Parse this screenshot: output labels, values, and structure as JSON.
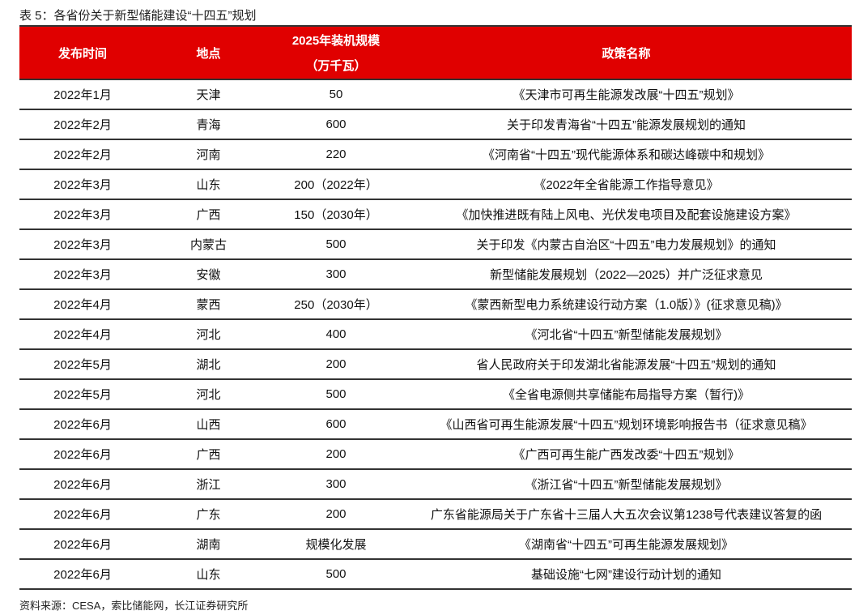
{
  "title": "表 5：各省份关于新型储能建设“十四五”规划",
  "headers": {
    "date": "发布时间",
    "location": "地点",
    "capacity_line1": "2025年装机规模",
    "capacity_line2": "（万千瓦）",
    "policy": "政策名称"
  },
  "rows": [
    [
      "2022年1月",
      "天津",
      "50",
      "《天津市可再生能源发改展“十四五”规划》"
    ],
    [
      "2022年2月",
      "青海",
      "600",
      "关于印发青海省“十四五”能源发展规划的通知"
    ],
    [
      "2022年2月",
      "河南",
      "220",
      "《河南省“十四五”现代能源体系和碳达峰碳中和规划》"
    ],
    [
      "2022年3月",
      "山东",
      "200（2022年）",
      "《2022年全省能源工作指导意见》"
    ],
    [
      "2022年3月",
      "广西",
      "150（2030年）",
      "《加快推进既有陆上风电、光伏发电项目及配套设施建设方案》"
    ],
    [
      "2022年3月",
      "内蒙古",
      "500",
      "关于印发《内蒙古自治区“十四五”电力发展规划》的通知"
    ],
    [
      "2022年3月",
      "安徽",
      "300",
      "新型储能发展规划（2022—2025）并广泛征求意见"
    ],
    [
      "2022年4月",
      "蒙西",
      "250（2030年）",
      "《蒙西新型电力系统建设行动方案（1.0版）》(征求意见稿)》"
    ],
    [
      "2022年4月",
      "河北",
      "400",
      "《河北省“十四五”新型储能发展规划》"
    ],
    [
      "2022年5月",
      "湖北",
      "200",
      "省人民政府关于印发湖北省能源发展“十四五”规划的通知"
    ],
    [
      "2022年5月",
      "河北",
      "500",
      "《全省电源侧共享储能布局指导方案（暂行)》"
    ],
    [
      "2022年6月",
      "山西",
      "600",
      "《山西省可再生能源发展“十四五”规划环境影响报告书（征求意见稿》"
    ],
    [
      "2022年6月",
      "广西",
      "200",
      "《广西可再生能广西发改委“十四五”规划》"
    ],
    [
      "2022年6月",
      "浙江",
      "300",
      "《浙江省“十四五”新型储能发展规划》"
    ],
    [
      "2022年6月",
      "广东",
      "200",
      "广东省能源局关于广东省十三届人大五次会议第1238号代表建议答复的函"
    ],
    [
      "2022年6月",
      "湖南",
      "规模化发展",
      "《湖南省“十四五”可再生能源发展规划》"
    ],
    [
      "2022年6月",
      "山东",
      "500",
      "基础设施“七网”建设行动计划的通知"
    ]
  ],
  "source": "资料来源：CESA，索比储能网，长江证券研究所",
  "colors": {
    "header_bg": "#e00000",
    "header_text": "#ffffff"
  }
}
